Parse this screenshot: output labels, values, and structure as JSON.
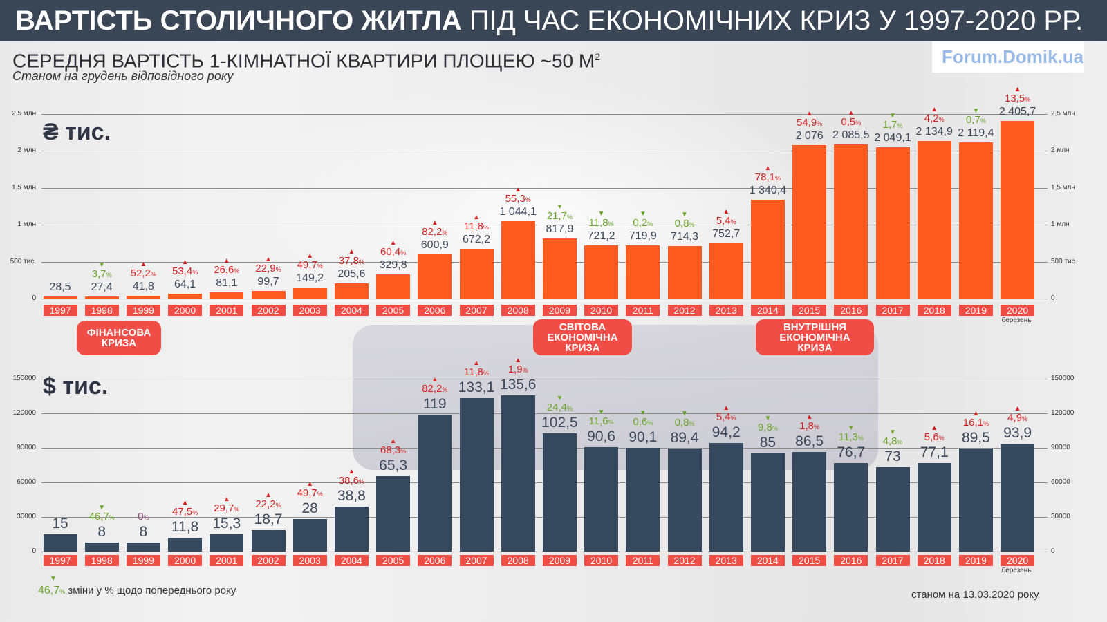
{
  "title": {
    "bold": "ВАРТІСТЬ СТОЛИЧНОГО ЖИТЛА",
    "rest": "ПІД ЧАС ЕКОНОМІЧНИХ КРИЗ У 1997-2020 РР."
  },
  "watermark": "Forum.Domik.ua",
  "subtitle": "СЕРЕДНЯ ВАРТІСТЬ 1-КІМНАТНОЇ КВАРТИРИ ПЛОЩЕЮ ~50 М",
  "subtitle_sup": "2",
  "note": "Станом на грудень відповідного року",
  "crises": [
    {
      "label": "ФІНАНСОВА\nКРИЗА"
    },
    {
      "label": "СВІТОВА\nЕКОНОМІЧНА\nКРИЗА"
    },
    {
      "label": "ВНУТРІШНЯ\nЕКОНОМІЧНА\nКРИЗА"
    }
  ],
  "legend": {
    "value": "46,7",
    "unit": "%",
    "text": "зміни у % щодо попереднього року"
  },
  "as_of": "станом на 13.03.2020 року",
  "colors": {
    "uah": "#ff5a1f",
    "usd": "#34495e",
    "up": "#d42020",
    "down": "#6aa52a",
    "year": "#ef4d45",
    "header": "#3a4556"
  },
  "chart_data": [
    {
      "type": "bar",
      "title": "₴ тис.",
      "ylabel": "₴ тис.",
      "ylim": [
        0,
        2500
      ],
      "yticks": [
        {
          "v": 0,
          "label": "0"
        },
        {
          "v": 500,
          "label": "500 тис."
        },
        {
          "v": 1000,
          "label": "1 млн"
        },
        {
          "v": 1500,
          "label": "1,5 млн"
        },
        {
          "v": 2000,
          "label": "2 млн"
        },
        {
          "v": 2500,
          "label": "2,5 млн"
        }
      ],
      "categories": [
        "1997",
        "1998",
        "1999",
        "2000",
        "2001",
        "2002",
        "2003",
        "2004",
        "2005",
        "2006",
        "2007",
        "2008",
        "2009",
        "2010",
        "2011",
        "2012",
        "2013",
        "2014",
        "2015",
        "2016",
        "2017",
        "2018",
        "2019",
        "2020"
      ],
      "last_note": "березень",
      "values": [
        28.5,
        27.4,
        41.8,
        64.1,
        81.1,
        99.7,
        149.2,
        205.6,
        329.8,
        600.9,
        672.2,
        1044.1,
        817.9,
        721.2,
        719.9,
        714.3,
        752.7,
        1340.4,
        2076,
        2085.5,
        2049.1,
        2134.9,
        2119.4,
        2405.7
      ],
      "value_labels": [
        "28,5",
        "27,4",
        "41,8",
        "64,1",
        "81,1",
        "99,7",
        "149,2",
        "205,6",
        "329,8",
        "600,9",
        "672,2",
        "1 044,1",
        "817,9",
        "721,2",
        "719,9",
        "714,3",
        "752,7",
        "1 340,4",
        "2 076",
        "2 085,5",
        "2 049,1",
        "2 134,9",
        "2 119,4",
        "2 405,7"
      ],
      "changes": [
        null,
        {
          "v": "3,7",
          "dir": "down"
        },
        {
          "v": "52,2",
          "dir": "up"
        },
        {
          "v": "53,4",
          "dir": "up"
        },
        {
          "v": "26,6",
          "dir": "up"
        },
        {
          "v": "22,9",
          "dir": "up"
        },
        {
          "v": "49,7",
          "dir": "up"
        },
        {
          "v": "37,8",
          "dir": "up"
        },
        {
          "v": "60,4",
          "dir": "up"
        },
        {
          "v": "82,2",
          "dir": "up"
        },
        {
          "v": "11,8",
          "dir": "up"
        },
        {
          "v": "55,3",
          "dir": "up"
        },
        {
          "v": "21,7",
          "dir": "down"
        },
        {
          "v": "11,8",
          "dir": "down"
        },
        {
          "v": "0,2",
          "dir": "down"
        },
        {
          "v": "0,8",
          "dir": "down"
        },
        {
          "v": "5,4",
          "dir": "up"
        },
        {
          "v": "78,1",
          "dir": "up"
        },
        {
          "v": "54,9",
          "dir": "up"
        },
        {
          "v": "0,5",
          "dir": "up"
        },
        {
          "v": "1,7",
          "dir": "down"
        },
        {
          "v": "4,2",
          "dir": "up"
        },
        {
          "v": "0,7",
          "dir": "down"
        },
        {
          "v": "13,5",
          "dir": "up"
        }
      ]
    },
    {
      "type": "bar",
      "title": "$ тис.",
      "ylabel": "$ тис.",
      "ylim": [
        0,
        150
      ],
      "yticks": [
        {
          "v": 0,
          "label": "0"
        },
        {
          "v": 30,
          "label": "30000"
        },
        {
          "v": 60,
          "label": "60000"
        },
        {
          "v": 90,
          "label": "90000"
        },
        {
          "v": 120,
          "label": "120000"
        },
        {
          "v": 150,
          "label": "150000"
        }
      ],
      "categories": [
        "1997",
        "1998",
        "1999",
        "2000",
        "2001",
        "2002",
        "2003",
        "2004",
        "2005",
        "2006",
        "2007",
        "2008",
        "2009",
        "2010",
        "2011",
        "2012",
        "2013",
        "2014",
        "2015",
        "2016",
        "2017",
        "2018",
        "2019",
        "2020"
      ],
      "last_note": "березень",
      "values": [
        15,
        8,
        8,
        11.8,
        15.3,
        18.7,
        28,
        38.8,
        65.3,
        119,
        133.1,
        135.6,
        102.5,
        90.6,
        90.1,
        89.4,
        94.2,
        85,
        86.5,
        76.7,
        73,
        77.1,
        89.5,
        93.9
      ],
      "value_labels": [
        "15",
        "8",
        "8",
        "11,8",
        "15,3",
        "18,7",
        "28",
        "38,8",
        "65,3",
        "119",
        "133,1",
        "135,6",
        "102,5",
        "90,6",
        "90,1",
        "89,4",
        "94,2",
        "85",
        "86,5",
        "76,7",
        "73",
        "77,1",
        "89,5",
        "93,9"
      ],
      "changes": [
        null,
        {
          "v": "46,7",
          "dir": "down"
        },
        {
          "v": "0",
          "dir": "flat"
        },
        {
          "v": "47,5",
          "dir": "up"
        },
        {
          "v": "29,7",
          "dir": "up"
        },
        {
          "v": "22,2",
          "dir": "up"
        },
        {
          "v": "49,7",
          "dir": "up"
        },
        {
          "v": "38,6",
          "dir": "up"
        },
        {
          "v": "68,3",
          "dir": "up"
        },
        {
          "v": "82,2",
          "dir": "up"
        },
        {
          "v": "11,8",
          "dir": "up"
        },
        {
          "v": "1,9",
          "dir": "up"
        },
        {
          "v": "24,4",
          "dir": "down"
        },
        {
          "v": "11,6",
          "dir": "down"
        },
        {
          "v": "0,6",
          "dir": "down"
        },
        {
          "v": "0,8",
          "dir": "down"
        },
        {
          "v": "5,4",
          "dir": "up"
        },
        {
          "v": "9,8",
          "dir": "down"
        },
        {
          "v": "1,8",
          "dir": "up"
        },
        {
          "v": "11,3",
          "dir": "down"
        },
        {
          "v": "4,8",
          "dir": "down"
        },
        {
          "v": "5,6",
          "dir": "up"
        },
        {
          "v": "16,1",
          "dir": "up"
        },
        {
          "v": "4,9",
          "dir": "up"
        }
      ]
    }
  ]
}
